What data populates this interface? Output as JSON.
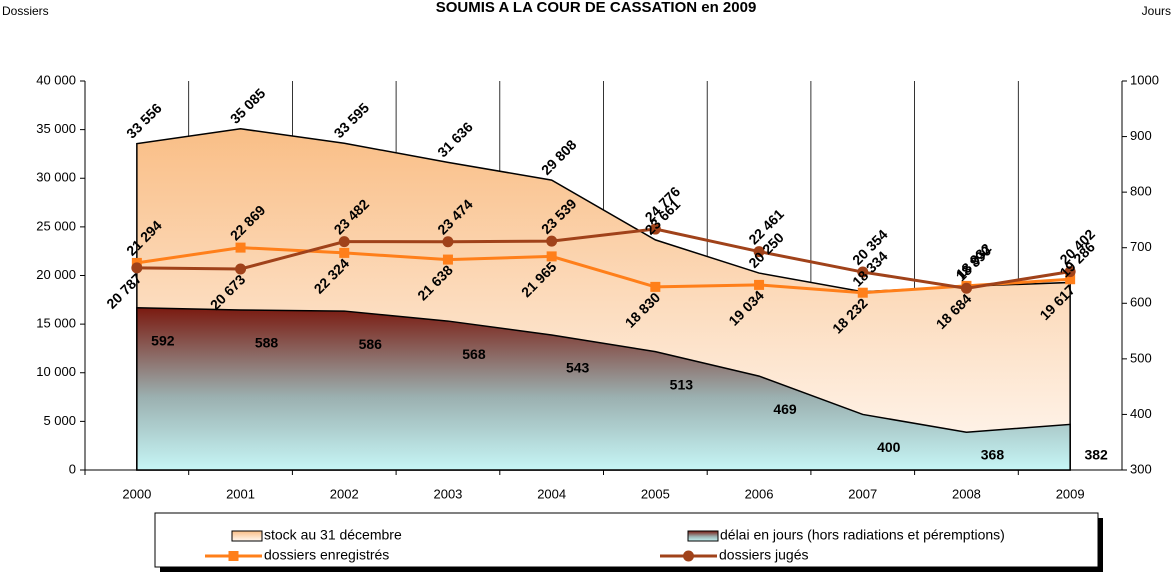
{
  "chart_data": {
    "type": "line",
    "title": "SOUMIS A LA COUR DE CASSATION en 2009",
    "y_label": "Dossiers",
    "y2_label": "Jours",
    "categories": [
      "2000",
      "2001",
      "2002",
      "2003",
      "2004",
      "2005",
      "2006",
      "2007",
      "2008",
      "2009"
    ],
    "ylim": [
      0,
      40000
    ],
    "yticks": [
      {
        "value": 0,
        "label": "0"
      },
      {
        "value": 5000,
        "label": "5 000"
      },
      {
        "value": 10000,
        "label": "10 000"
      },
      {
        "value": 15000,
        "label": "15 000"
      },
      {
        "value": 20000,
        "label": "20 000"
      },
      {
        "value": 25000,
        "label": "25 000"
      },
      {
        "value": 30000,
        "label": "30 000"
      },
      {
        "value": 35000,
        "label": "35 000"
      },
      {
        "value": 40000,
        "label": "40 000"
      }
    ],
    "y2lim": [
      300,
      1000
    ],
    "y2ticks": [
      300,
      400,
      500,
      600,
      700,
      800,
      900,
      1000
    ],
    "series": [
      {
        "name": "stock au 31 décembre",
        "kind": "area",
        "color": "#f9c08a",
        "label_color": "#8c8c8c",
        "values": [
          33556,
          35085,
          33595,
          31636,
          29808,
          23661,
          20250,
          18334,
          18890,
          19286
        ],
        "value_labels": [
          "33 556",
          "35 085",
          "33 595",
          "31 636",
          "29 808",
          "23 661",
          "20 250",
          "18 334",
          "18 890",
          "19 286"
        ]
      },
      {
        "name": "délai en jours (hors radiations et péremptions)",
        "kind": "area",
        "axis": "y2",
        "color": "#7a1a10",
        "label_color": "#000000",
        "values": [
          592,
          588,
          586,
          568,
          543,
          513,
          469,
          400,
          368,
          382
        ]
      },
      {
        "name": "dossiers enregistrés",
        "kind": "line",
        "marker": "square",
        "color": "#ff7f1a",
        "label_color": "#ff7f1a",
        "values": [
          21294,
          22869,
          22324,
          21638,
          21965,
          18830,
          19034,
          18232,
          18932,
          19617
        ],
        "value_labels": [
          "21 294",
          "22 869",
          "22 324",
          "21 638",
          "21 965",
          "18 830",
          "19 034",
          "18 232",
          "18 932",
          "19 617"
        ]
      },
      {
        "name": "dossiers jugés",
        "kind": "line",
        "marker": "circle",
        "color": "#a0421a",
        "label_color": "#a0421a",
        "values": [
          20787,
          20673,
          23482,
          23474,
          23539,
          24776,
          22461,
          20354,
          18684,
          20402
        ],
        "value_labels": [
          "20 787",
          "20 673",
          "23 482",
          "23 474",
          "23 539",
          "24 776",
          "22 461",
          "20 354",
          "18 684",
          "20 402"
        ]
      }
    ]
  }
}
